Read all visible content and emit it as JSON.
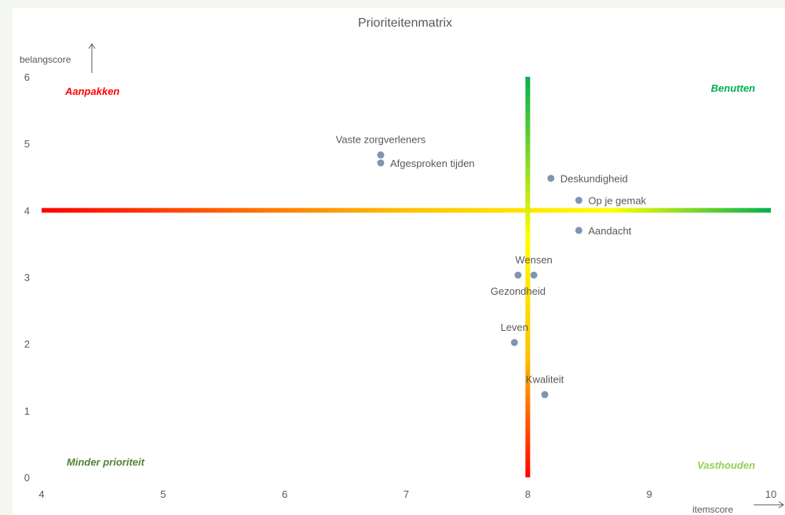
{
  "chart_data": {
    "type": "scatter",
    "title": "Prioriteitenmatrix",
    "xlabel": "itemscore",
    "ylabel": "belangscore",
    "xlim": [
      4,
      10
    ],
    "ylim": [
      0,
      6
    ],
    "x_ticks": [
      "4",
      "5",
      "6",
      "7",
      "8",
      "9",
      "10"
    ],
    "y_ticks": [
      "0",
      "1",
      "2",
      "3",
      "4",
      "5",
      "6"
    ],
    "grid": false,
    "reference_lines": {
      "x": 8,
      "y": 4
    },
    "points": [
      {
        "label": "Vaste zorgverleners",
        "x": 6.79,
        "y": 4.83,
        "label_pos": "above"
      },
      {
        "label": "Afgesproken tijden",
        "x": 6.79,
        "y": 4.71,
        "label_pos": "right"
      },
      {
        "label": "Deskundigheid",
        "x": 8.19,
        "y": 4.48,
        "label_pos": "right"
      },
      {
        "label": "Op je gemak",
        "x": 8.42,
        "y": 4.15,
        "label_pos": "right"
      },
      {
        "label": "Aandacht",
        "x": 8.42,
        "y": 3.7,
        "label_pos": "right"
      },
      {
        "label": "Wensen",
        "x": 8.05,
        "y": 3.03,
        "label_pos": "above"
      },
      {
        "label": "Gezondheid",
        "x": 7.92,
        "y": 3.03,
        "label_pos": "below"
      },
      {
        "label": "Leven",
        "x": 7.89,
        "y": 2.02,
        "label_pos": "above"
      },
      {
        "label": "Kwaliteit",
        "x": 8.14,
        "y": 1.24,
        "label_pos": "above"
      }
    ],
    "point_color": "#7f96b2",
    "quadrants": [
      {
        "label": "Aanpakken",
        "color": "#ff0000",
        "position": "top-left"
      },
      {
        "label": "Benutten",
        "color": "#00b050",
        "position": "top-right"
      },
      {
        "label": "Minder prioriteit",
        "color": "#538135",
        "position": "bottom-left"
      },
      {
        "label": "Vasthouden",
        "color": "#92d050",
        "position": "bottom-right"
      }
    ]
  }
}
